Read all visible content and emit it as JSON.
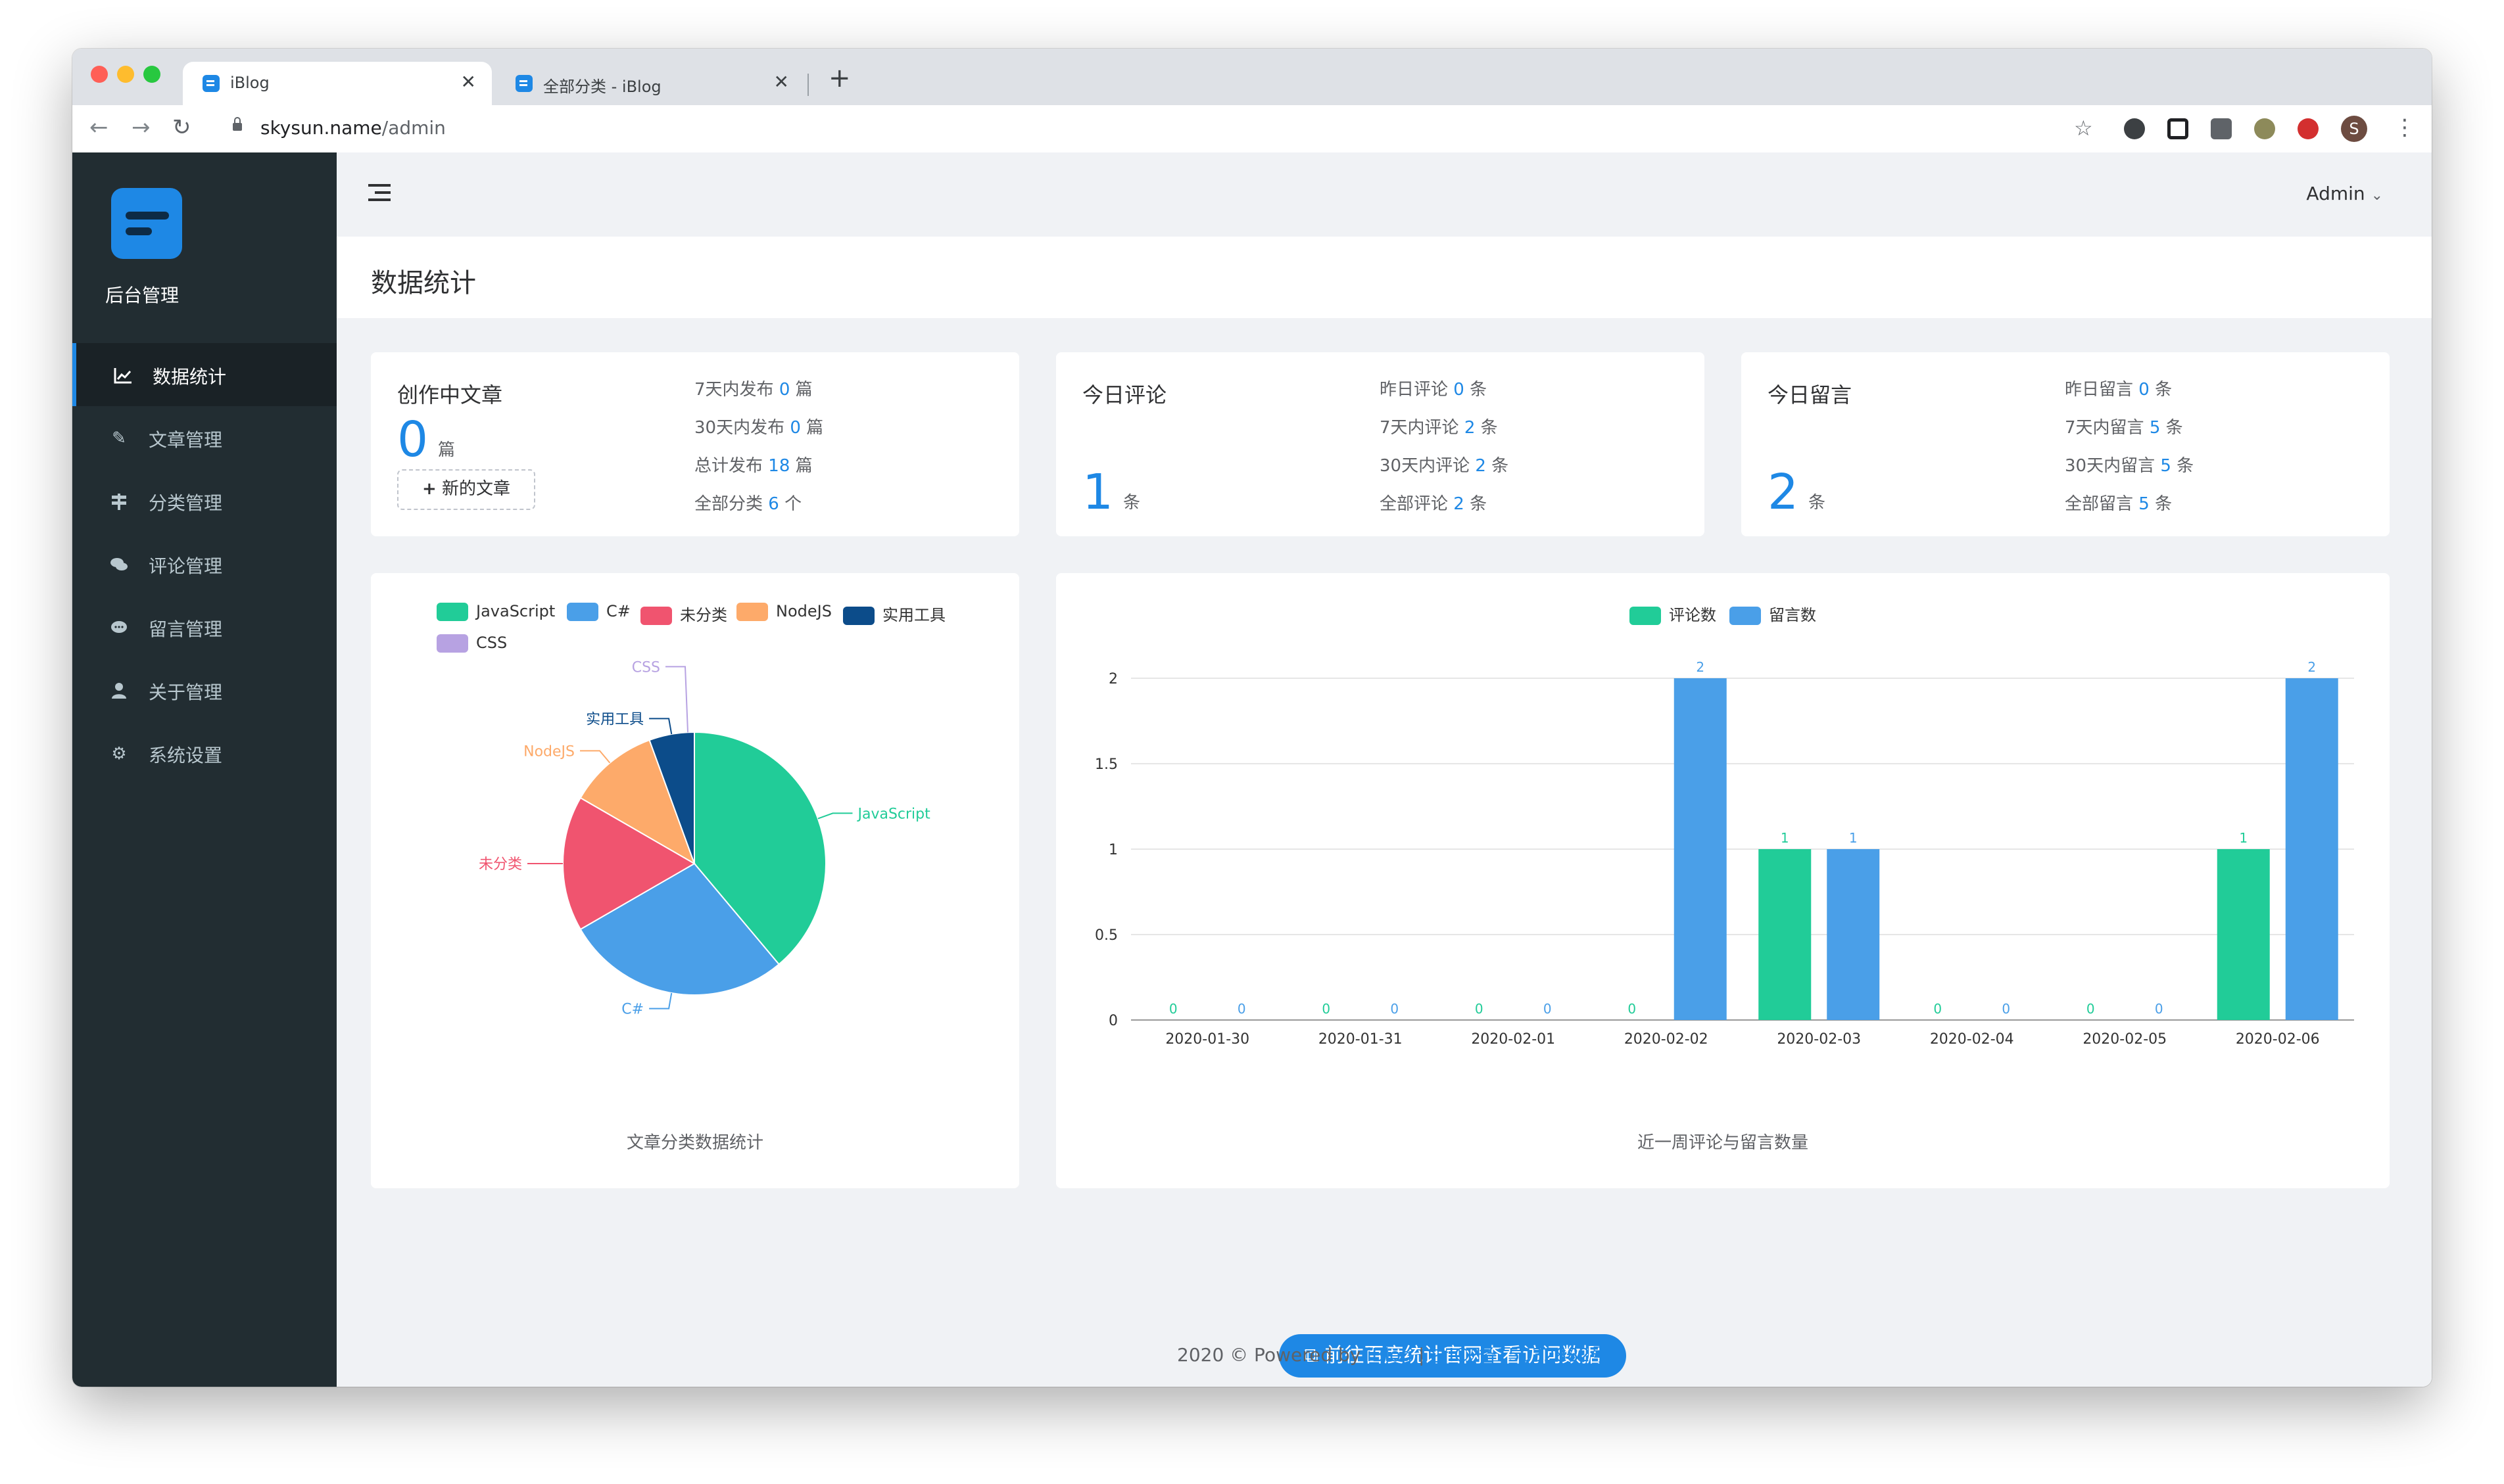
{
  "browser": {
    "tabs": [
      {
        "title": "iBlog",
        "close": "✕"
      },
      {
        "title": "全部分类 - iBlog",
        "close": "✕"
      }
    ],
    "new_tab": "+",
    "url_host": "skysun.name",
    "url_path": "/admin",
    "avatar_letter": "S",
    "colors": {
      "close": "#ff5f57",
      "minimize": "#febc2e",
      "maximize": "#28c840"
    }
  },
  "sidebar": {
    "brand": "后台管理",
    "items": [
      {
        "label": "数据统计",
        "icon": "chart-icon",
        "active": true
      },
      {
        "label": "文章管理",
        "icon": "pen-icon"
      },
      {
        "label": "分类管理",
        "icon": "signpost-icon"
      },
      {
        "label": "评论管理",
        "icon": "comments-icon"
      },
      {
        "label": "留言管理",
        "icon": "message-icon"
      },
      {
        "label": "关于管理",
        "icon": "user-icon"
      },
      {
        "label": "系统设置",
        "icon": "gears-icon"
      }
    ]
  },
  "header": {
    "user": "Admin",
    "page_title": "数据统计"
  },
  "cards": {
    "articles": {
      "label": "创作中文章",
      "value": "0",
      "unit": "篇",
      "new_button": "新的文章",
      "stats": [
        {
          "text": "7天内发布",
          "num": "0",
          "unit": "篇"
        },
        {
          "text": "30天内发布",
          "num": "0",
          "unit": "篇"
        },
        {
          "text": "总计发布",
          "num": "18",
          "unit": "篇"
        },
        {
          "text": "全部分类",
          "num": "6",
          "unit": "个"
        }
      ]
    },
    "comments": {
      "label": "今日评论",
      "value": "1",
      "unit": "条",
      "stats": [
        {
          "text": "昨日评论",
          "num": "0",
          "unit": "条"
        },
        {
          "text": "7天内评论",
          "num": "2",
          "unit": "条"
        },
        {
          "text": "30天内评论",
          "num": "2",
          "unit": "条"
        },
        {
          "text": "全部评论",
          "num": "2",
          "unit": "条"
        }
      ]
    },
    "messages": {
      "label": "今日留言",
      "value": "2",
      "unit": "条",
      "stats": [
        {
          "text": "昨日留言",
          "num": "0",
          "unit": "条"
        },
        {
          "text": "7天内留言",
          "num": "5",
          "unit": "条"
        },
        {
          "text": "30天内留言",
          "num": "5",
          "unit": "条"
        },
        {
          "text": "全部留言",
          "num": "5",
          "unit": "条"
        }
      ]
    }
  },
  "chart_data": [
    {
      "type": "pie",
      "title": "文章分类数据统计",
      "legend_position": "top",
      "labels": [
        "JavaScript",
        "C#",
        "未分类",
        "NodeJS",
        "实用工具",
        "CSS"
      ],
      "values": [
        7,
        5,
        3,
        2,
        1,
        0
      ],
      "colors": [
        "#21cc98",
        "#4a9fe8",
        "#f0546f",
        "#fdaa6a",
        "#0c4c8a",
        "#b7a2e2"
      ]
    },
    {
      "type": "bar",
      "title": "近一周评论与留言数量",
      "legend_position": "top",
      "categories": [
        "2020-01-30",
        "2020-01-31",
        "2020-02-01",
        "2020-02-02",
        "2020-02-03",
        "2020-02-04",
        "2020-02-05",
        "2020-02-06"
      ],
      "series": [
        {
          "name": "评论数",
          "values": [
            0,
            0,
            0,
            0,
            1,
            0,
            0,
            1
          ],
          "color": "#21cc98"
        },
        {
          "name": "留言数",
          "values": [
            0,
            0,
            0,
            2,
            1,
            0,
            0,
            2
          ],
          "color": "#4a9fe8"
        }
      ],
      "yticks": [
        "0",
        "0.5",
        "1",
        "1.5",
        "2"
      ],
      "ylim": [
        0,
        2
      ],
      "grid": true
    }
  ],
  "actions": {
    "baidu_button": "前往百度统计官网查看访问数据"
  },
  "footer": {
    "prefix": "2020 © Powered by ",
    "link": "iBlog",
    "sep": " | ",
    "icp": "浙ICP备15032882号"
  }
}
